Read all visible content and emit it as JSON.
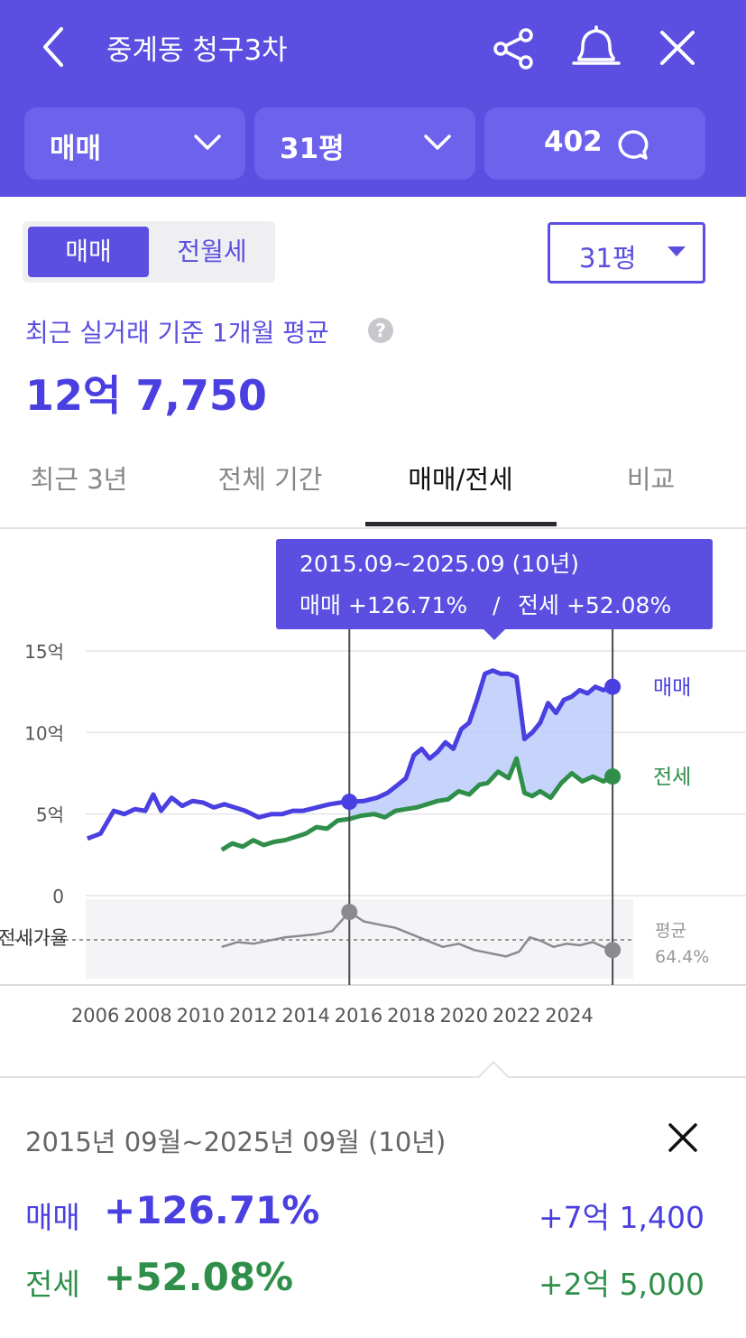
{
  "header": {
    "title": "중계동 청구3차",
    "filters": {
      "deal_type": "매매",
      "size": "31평",
      "comments": "402"
    }
  },
  "toggle": {
    "sale": "매매",
    "rent": "전월세"
  },
  "size_select": "31평",
  "average": {
    "label": "최근 실거래 기준 1개월 평균",
    "value": "12억 7,750",
    "help": "?"
  },
  "tabs": [
    {
      "label": "최근 3년"
    },
    {
      "label": "전체 기간"
    },
    {
      "label": "매매/전세"
    },
    {
      "label": "비교"
    }
  ],
  "chart_data": {
    "type": "line",
    "x_unit": "year",
    "xlim": [
      2005.7,
      2026.5
    ],
    "ylim": [
      0,
      15
    ],
    "y_ticks": [
      "15억",
      "10억",
      "5억",
      "0"
    ],
    "x_ticks": [
      "2006",
      "2008",
      "2010",
      "2012",
      "2014",
      "2016",
      "2018",
      "2020",
      "2022",
      "2024"
    ],
    "series": [
      {
        "name": "매매",
        "color": "#4a3fe0",
        "x": [
          2005.8,
          2006.3,
          2006.8,
          2007.2,
          2007.6,
          2008.0,
          2008.3,
          2008.6,
          2009.0,
          2009.4,
          2009.8,
          2010.2,
          2010.6,
          2011.0,
          2011.4,
          2011.8,
          2012.3,
          2012.8,
          2013.2,
          2013.6,
          2014.0,
          2014.5,
          2015.0,
          2015.4,
          2015.75,
          2016.3,
          2016.8,
          2017.2,
          2017.6,
          2017.9,
          2018.2,
          2018.5,
          2018.8,
          2019.1,
          2019.4,
          2019.7,
          2020.0,
          2020.3,
          2020.6,
          2020.9,
          2021.2,
          2021.5,
          2021.8,
          2022.1,
          2022.4,
          2022.7,
          2023.0,
          2023.3,
          2023.6,
          2023.9,
          2024.2,
          2024.5,
          2024.8,
          2025.1,
          2025.4,
          2025.75
        ],
        "y": [
          3.5,
          3.8,
          5.2,
          5.0,
          5.3,
          5.2,
          6.2,
          5.2,
          6.0,
          5.5,
          5.8,
          5.7,
          5.4,
          5.6,
          5.4,
          5.2,
          4.8,
          5.0,
          5.0,
          5.2,
          5.2,
          5.4,
          5.6,
          5.7,
          5.75,
          5.8,
          6.0,
          6.3,
          6.8,
          7.2,
          8.6,
          9.0,
          8.4,
          8.8,
          9.4,
          9.0,
          10.2,
          10.6,
          12.0,
          13.6,
          13.8,
          13.6,
          13.6,
          13.4,
          9.6,
          10.0,
          10.6,
          11.8,
          11.2,
          12.0,
          12.2,
          12.6,
          12.4,
          12.8,
          12.6,
          12.8
        ]
      },
      {
        "name": "전세",
        "color": "#2f8f4a",
        "x": [
          2010.9,
          2011.3,
          2011.7,
          2012.1,
          2012.5,
          2012.9,
          2013.3,
          2013.7,
          2014.1,
          2014.5,
          2014.9,
          2015.3,
          2015.75,
          2016.2,
          2016.7,
          2017.1,
          2017.5,
          2017.9,
          2018.3,
          2018.7,
          2019.1,
          2019.5,
          2019.9,
          2020.3,
          2020.7,
          2021.0,
          2021.4,
          2021.8,
          2022.1,
          2022.4,
          2022.7,
          2023.0,
          2023.4,
          2023.8,
          2024.2,
          2024.6,
          2025.0,
          2025.4,
          2025.75
        ],
        "y": [
          2.8,
          3.2,
          3.0,
          3.4,
          3.1,
          3.3,
          3.4,
          3.6,
          3.8,
          4.2,
          4.1,
          4.6,
          4.7,
          4.9,
          5.0,
          4.8,
          5.2,
          5.3,
          5.4,
          5.6,
          5.8,
          5.9,
          6.4,
          6.2,
          6.8,
          6.9,
          7.6,
          7.2,
          8.4,
          6.3,
          6.1,
          6.4,
          6.0,
          6.9,
          7.5,
          7.0,
          7.3,
          7.0,
          7.3
        ]
      },
      {
        "name": "전세가율",
        "x": [
          2010.9,
          2011.5,
          2012.1,
          2012.7,
          2013.3,
          2013.9,
          2014.5,
          2015.1,
          2015.75,
          2016.3,
          2016.9,
          2017.5,
          2018.1,
          2018.7,
          2019.3,
          2019.9,
          2020.5,
          2021.1,
          2021.7,
          2022.2,
          2022.6,
          2023.0,
          2023.5,
          2024.0,
          2024.5,
          2025.0,
          2025.4,
          2025.75
        ],
        "y": [
          60,
          63,
          62,
          64,
          66,
          67,
          68,
          70,
          82,
          76,
          74,
          72,
          68,
          64,
          60,
          62,
          58,
          56,
          54,
          57,
          66,
          64,
          60,
          62,
          61,
          63,
          60,
          58
        ]
      }
    ],
    "ratio_avg": {
      "label": "평균",
      "value": "64.4%"
    },
    "end_labels": {
      "sale": "매매",
      "rent": "전세"
    },
    "ratio_label": "전세가율",
    "selection": {
      "from": 2015.75,
      "to": 2025.75
    }
  },
  "tooltip": {
    "period": "2015.09~2025.09 (10년)",
    "sale_text": "매매 +126.71%",
    "sep": "/",
    "rent_text": "전세 +52.08%"
  },
  "panel": {
    "period": "2015년 09월~2025년 09월 (10년)",
    "rows": [
      {
        "label": "매매",
        "pct": "+126.71%",
        "amount": "+7억 1,400"
      },
      {
        "label": "전세",
        "pct": "+52.08%",
        "amount": "+2억 5,000"
      }
    ]
  },
  "colors": {
    "brand": "#5b4ee0",
    "sale": "#4a3fe0",
    "rent": "#2f8f4a"
  }
}
